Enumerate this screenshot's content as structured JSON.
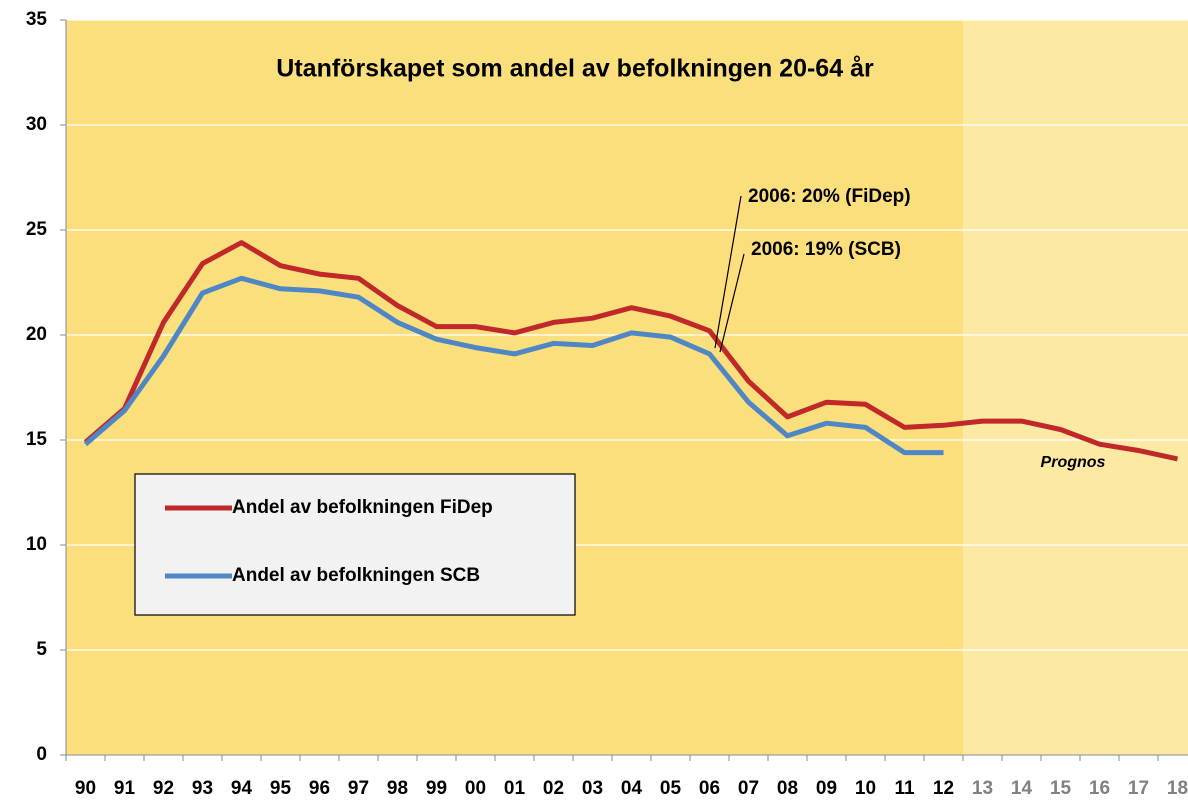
{
  "chart_data": {
    "type": "line",
    "title": "Utanförskapet som andel av befolkningen 20-64 år",
    "categories": [
      "90",
      "91",
      "92",
      "93",
      "94",
      "95",
      "96",
      "97",
      "98",
      "99",
      "00",
      "01",
      "02",
      "03",
      "04",
      "05",
      "06",
      "07",
      "08",
      "09",
      "10",
      "11",
      "12",
      "13",
      "14",
      "15",
      "16",
      "17",
      "18"
    ],
    "series": [
      {
        "name": "Andel av befolkningen FiDep",
        "color": "#c0282a",
        "values": [
          14.9,
          16.5,
          20.6,
          23.4,
          24.4,
          23.3,
          22.9,
          22.7,
          21.4,
          20.4,
          20.4,
          20.1,
          20.6,
          20.8,
          21.3,
          20.9,
          20.2,
          17.8,
          16.1,
          16.8,
          16.7,
          15.6,
          15.7,
          15.9,
          15.9,
          15.5,
          14.8,
          14.5,
          14.1
        ]
      },
      {
        "name": "Andel av befolkningen SCB",
        "color": "#4f86c6",
        "values": [
          14.8,
          16.4,
          19.0,
          22.0,
          22.7,
          22.2,
          22.1,
          21.8,
          20.6,
          19.8,
          19.4,
          19.1,
          19.6,
          19.5,
          20.1,
          19.9,
          19.1,
          16.8,
          15.2,
          15.8,
          15.6,
          14.4,
          14.4,
          null,
          null,
          null,
          null,
          null,
          null
        ]
      }
    ],
    "annotations": [
      "2006: 20% (FiDep)",
      "2006: 19% (SCB)",
      "Prognos"
    ],
    "forecast_from": "13",
    "ylim": [
      0,
      35
    ],
    "yticks": [
      0,
      5,
      10,
      15,
      20,
      25,
      30,
      35
    ],
    "grid": true,
    "plot_color": "#fbdf7d",
    "forecast_color": "#fce9a4",
    "forecast_label_color": "#808080"
  }
}
